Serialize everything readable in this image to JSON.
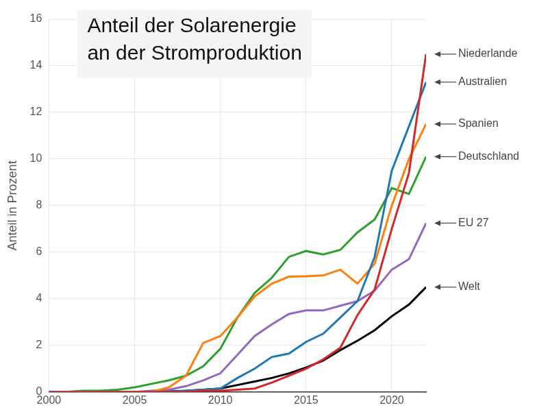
{
  "chart_data": {
    "type": "line",
    "title": [
      "Anteil der Solarenergie",
      "an der Stromproduktion"
    ],
    "y_label": "Anteil in Prozent",
    "x": [
      2000,
      2001,
      2002,
      2003,
      2004,
      2005,
      2006,
      2007,
      2008,
      2009,
      2010,
      2011,
      2012,
      2013,
      2014,
      2015,
      2016,
      2017,
      2018,
      2019,
      2020,
      2021,
      2022
    ],
    "series": [
      {
        "name": "Niederlande",
        "color": "#d62728",
        "values": [
          0,
          0,
          0,
          0,
          0,
          0,
          0,
          0,
          0,
          0.05,
          0.05,
          0.1,
          0.15,
          0.4,
          0.7,
          1.0,
          1.4,
          1.9,
          3.3,
          4.4,
          7.0,
          9.4,
          14.5
        ]
      },
      {
        "name": "Australien",
        "color": "#1f77b4",
        "values": [
          0,
          0,
          0,
          0,
          0,
          0,
          0,
          0,
          0.05,
          0.1,
          0.15,
          0.6,
          1.0,
          1.5,
          1.65,
          2.15,
          2.5,
          3.2,
          3.9,
          5.8,
          9.5,
          11.4,
          13.3
        ]
      },
      {
        "name": "Spanien",
        "color": "#ff7f0e",
        "values": [
          0,
          0,
          0,
          0,
          0,
          0,
          0,
          0.2,
          0.7,
          2.1,
          2.4,
          3.2,
          4.1,
          4.65,
          4.95,
          4.97,
          5.0,
          5.25,
          4.65,
          5.5,
          8.0,
          10.0,
          11.5
        ]
      },
      {
        "name": "Deutschland",
        "color": "#2ca02c",
        "values": [
          0,
          0,
          0.05,
          0.05,
          0.1,
          0.2,
          0.35,
          0.5,
          0.7,
          1.1,
          1.85,
          3.2,
          4.25,
          4.9,
          5.8,
          6.05,
          5.9,
          6.1,
          6.85,
          7.4,
          8.75,
          8.5,
          10.1
        ]
      },
      {
        "name": "EU 27",
        "color": "#9467bd",
        "values": [
          0,
          0,
          0,
          0,
          0,
          0,
          0.05,
          0.1,
          0.25,
          0.5,
          0.8,
          1.6,
          2.4,
          2.9,
          3.35,
          3.5,
          3.5,
          3.7,
          3.9,
          4.35,
          5.25,
          5.7,
          7.25
        ]
      },
      {
        "name": "Welt",
        "color": "#000000",
        "values": [
          0,
          0,
          0,
          0,
          0,
          0,
          0.01,
          0.02,
          0.05,
          0.1,
          0.15,
          0.3,
          0.45,
          0.6,
          0.8,
          1.05,
          1.35,
          1.8,
          2.2,
          2.65,
          3.25,
          3.75,
          4.5
        ]
      }
    ],
    "xlim": [
      2000,
      2022
    ],
    "xticks": [
      2000,
      2005,
      2010,
      2015,
      2020
    ],
    "ylim": [
      0,
      16
    ],
    "yticks": [
      0,
      2,
      4,
      6,
      8,
      10,
      12,
      14,
      16
    ],
    "grid": true
  }
}
